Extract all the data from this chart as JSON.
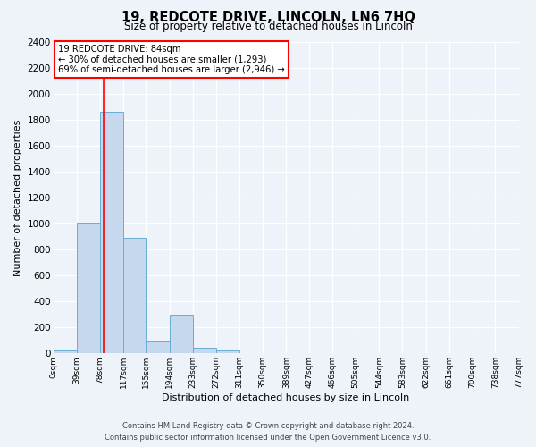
{
  "title": "19, REDCOTE DRIVE, LINCOLN, LN6 7HQ",
  "subtitle": "Size of property relative to detached houses in Lincoln",
  "xlabel": "Distribution of detached houses by size in Lincoln",
  "ylabel": "Number of detached properties",
  "bin_edges": [
    0,
    39,
    78,
    117,
    155,
    194,
    233,
    272,
    311,
    350,
    389,
    427,
    466,
    505,
    544,
    583,
    622,
    661,
    700,
    738,
    777
  ],
  "bin_labels": [
    "0sqm",
    "39sqm",
    "78sqm",
    "117sqm",
    "155sqm",
    "194sqm",
    "233sqm",
    "272sqm",
    "311sqm",
    "350sqm",
    "389sqm",
    "427sqm",
    "466sqm",
    "505sqm",
    "544sqm",
    "583sqm",
    "622sqm",
    "661sqm",
    "700sqm",
    "738sqm",
    "777sqm"
  ],
  "bar_heights": [
    20,
    1000,
    1860,
    890,
    100,
    300,
    40,
    20,
    0,
    0,
    0,
    0,
    0,
    0,
    0,
    0,
    0,
    0,
    0,
    0
  ],
  "bar_color": "#c5d8ee",
  "bar_edge_color": "#6aadd5",
  "property_line_x": 84,
  "vline_color": "red",
  "annotation_title": "19 REDCOTE DRIVE: 84sqm",
  "annotation_line1": "← 30% of detached houses are smaller (1,293)",
  "annotation_line2": "69% of semi-detached houses are larger (2,946) →",
  "annotation_box_color": "white",
  "annotation_box_edge_color": "red",
  "ylim": [
    0,
    2400
  ],
  "yticks": [
    0,
    200,
    400,
    600,
    800,
    1000,
    1200,
    1400,
    1600,
    1800,
    2000,
    2200,
    2400
  ],
  "footer1": "Contains HM Land Registry data © Crown copyright and database right 2024.",
  "footer2": "Contains public sector information licensed under the Open Government Licence v3.0.",
  "bg_color": "#eef2f9",
  "grid_color": "#ffffff"
}
